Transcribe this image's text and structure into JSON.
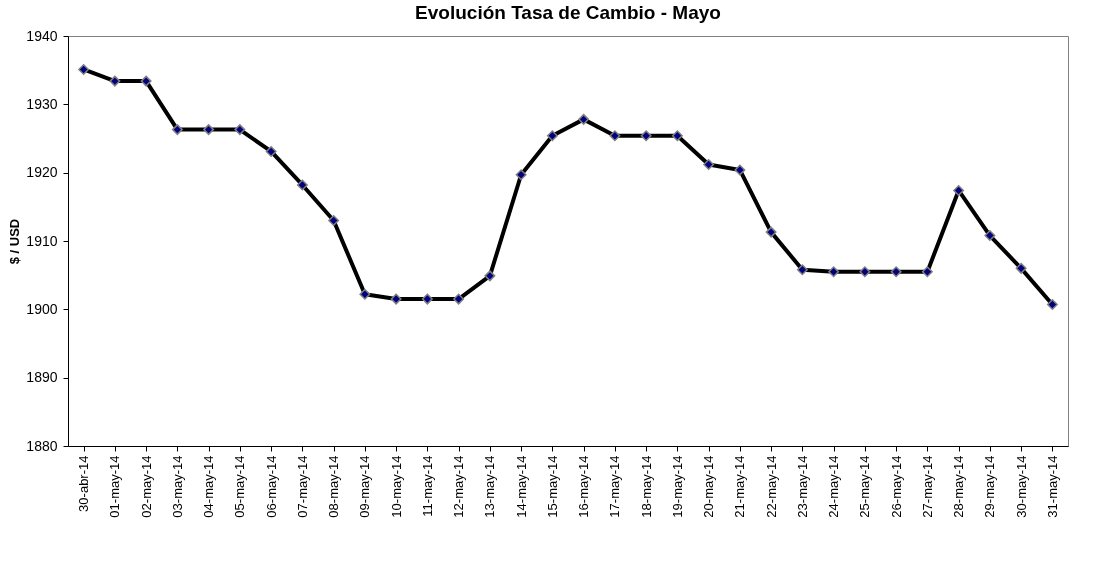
{
  "chart_data": {
    "type": "line",
    "title": "Evolución Tasa de Cambio - Mayo",
    "ylabel": "$ / USD",
    "categories": [
      "30-abr-14",
      "01-may-14",
      "02-may-14",
      "03-may-14",
      "04-may-14",
      "05-may-14",
      "06-may-14",
      "07-may-14",
      "08-may-14",
      "09-may-14",
      "10-may-14",
      "11-may-14",
      "12-may-14",
      "13-may-14",
      "14-may-14",
      "15-may-14",
      "16-may-14",
      "17-may-14",
      "18-may-14",
      "19-may-14",
      "20-may-14",
      "21-may-14",
      "22-may-14",
      "23-may-14",
      "24-may-14",
      "25-may-14",
      "26-may-14",
      "27-may-14",
      "28-may-14",
      "29-may-14",
      "30-may-14",
      "31-may-14"
    ],
    "series": [
      {
        "color": "#000000",
        "values": [
          1935.1,
          1933.4,
          1933.4,
          1926.3,
          1926.3,
          1926.3,
          1923.1,
          1918.2,
          1913.0,
          1902.2,
          1901.5,
          1901.5,
          1901.5,
          1904.9,
          1919.7,
          1925.4,
          1927.8,
          1925.4,
          1925.4,
          1925.4,
          1921.2,
          1920.4,
          1911.3,
          1905.8,
          1905.5,
          1905.5,
          1905.5,
          1905.5,
          1917.4,
          1910.8,
          1906.0,
          1900.7
        ]
      }
    ],
    "ylim": [
      1880,
      1940
    ],
    "yticks": [
      1880,
      1890,
      1900,
      1910,
      1920,
      1930,
      1940
    ],
    "marker": "diamond",
    "line_style": "solid"
  }
}
